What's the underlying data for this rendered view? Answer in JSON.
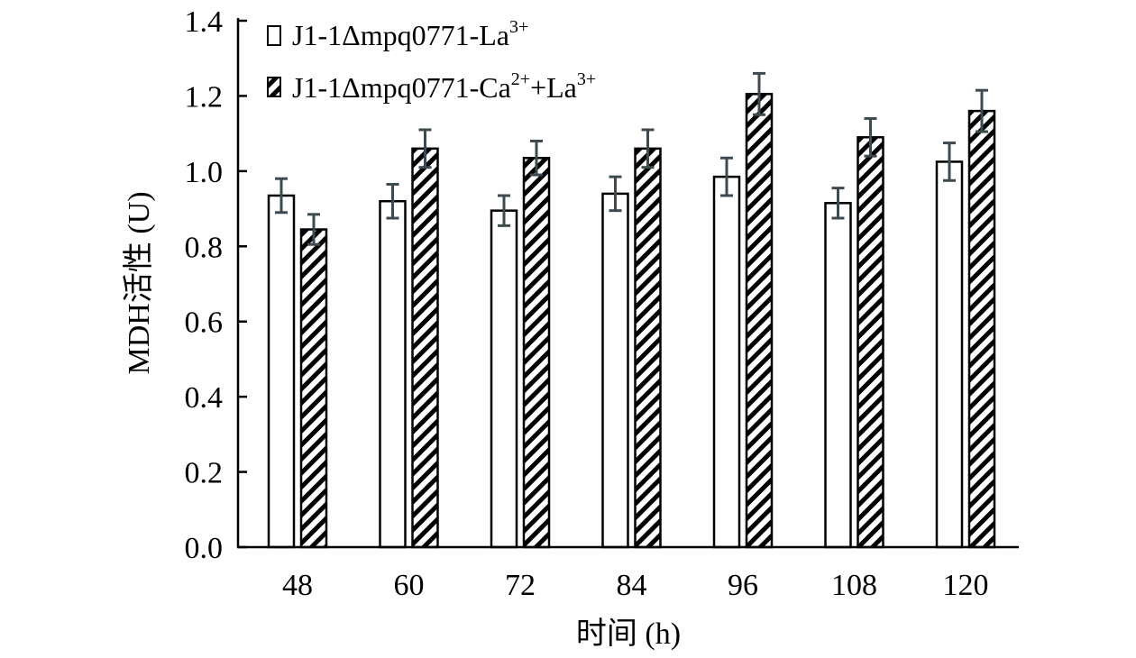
{
  "chart_data": {
    "type": "bar",
    "categories": [
      "48",
      "60",
      "72",
      "84",
      "96",
      "108",
      "120"
    ],
    "series": [
      {
        "name": "J1-1Δmpq0771-La³⁺",
        "legend_base": "J1-1Δmpq0771-La",
        "legend_sup": "3+",
        "pattern": "plain",
        "values": [
          0.935,
          0.92,
          0.895,
          0.94,
          0.985,
          0.915,
          1.025
        ],
        "errors": [
          0.045,
          0.045,
          0.04,
          0.045,
          0.05,
          0.04,
          0.05
        ]
      },
      {
        "name": "J1-1Δmpq0771-Ca²⁺+La³⁺",
        "legend_base": "J1-1Δmpq0771-Ca",
        "legend_sup": "2+",
        "legend_mid": "+La",
        "legend_sup2": "3+",
        "pattern": "hatched",
        "values": [
          0.845,
          1.06,
          1.035,
          1.06,
          1.205,
          1.09,
          1.16
        ],
        "errors": [
          0.04,
          0.05,
          0.045,
          0.05,
          0.055,
          0.05,
          0.055
        ]
      }
    ],
    "xlabel": "时间 (h)",
    "ylabel": "MDH活性 (U)",
    "ylim": [
      0,
      1.4
    ],
    "yticks": [
      "0.0",
      "0.2",
      "0.4",
      "0.6",
      "0.8",
      "1.0",
      "1.2",
      "1.4"
    ],
    "grid": false,
    "legend_position": "top-left",
    "colors": {
      "bar_stroke": "#000000",
      "bar_fill": "#ffffff",
      "error_bar": "#3d4a4f"
    }
  }
}
